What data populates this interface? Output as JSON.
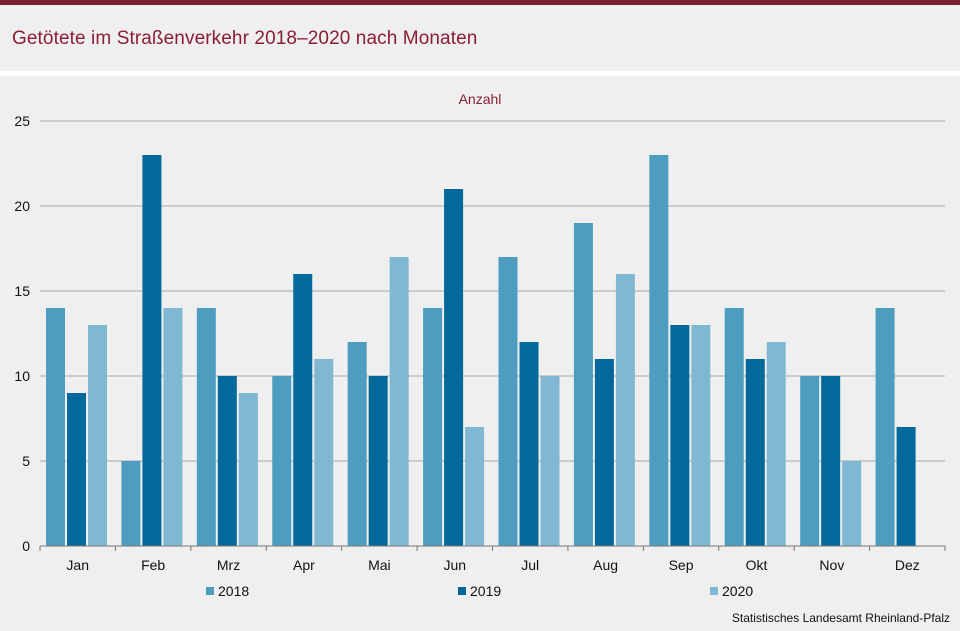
{
  "header": {
    "title": "Getötete im Straßenverkehr 2018–2020 nach Monaten"
  },
  "footer": {
    "source": "Statistisches Landesamt Rheinland-Pfalz"
  },
  "colors": {
    "accent": "#8b1e35",
    "series_2018": "#4c9dbf",
    "series_2019": "#02699a",
    "series_2020": "#80b8d4",
    "gridline": "#aaaaaa",
    "background": "#eeefee"
  },
  "chart_data": {
    "type": "bar",
    "title": "Getötete im Straßenverkehr 2018–2020 nach Monaten",
    "unit_label": "Anzahl",
    "xlabel": "",
    "ylabel": "Anzahl",
    "ylim": [
      0,
      25
    ],
    "yticks": [
      0,
      5,
      10,
      15,
      20,
      25
    ],
    "grid": true,
    "legend_position": "bottom",
    "categories": [
      "Jan",
      "Feb",
      "Mrz",
      "Apr",
      "Mai",
      "Jun",
      "Jul",
      "Aug",
      "Sep",
      "Okt",
      "Nov",
      "Dez"
    ],
    "series": [
      {
        "name": "2018",
        "color": "#4c9dbf",
        "values": [
          14,
          5,
          14,
          10,
          12,
          14,
          17,
          19,
          23,
          14,
          10,
          14
        ]
      },
      {
        "name": "2019",
        "color": "#02699a",
        "values": [
          9,
          23,
          10,
          16,
          10,
          21,
          12,
          11,
          13,
          11,
          10,
          7
        ]
      },
      {
        "name": "2020",
        "color": "#80b8d4",
        "values": [
          13,
          14,
          9,
          11,
          17,
          7,
          10,
          16,
          13,
          12,
          5,
          null
        ]
      }
    ]
  }
}
